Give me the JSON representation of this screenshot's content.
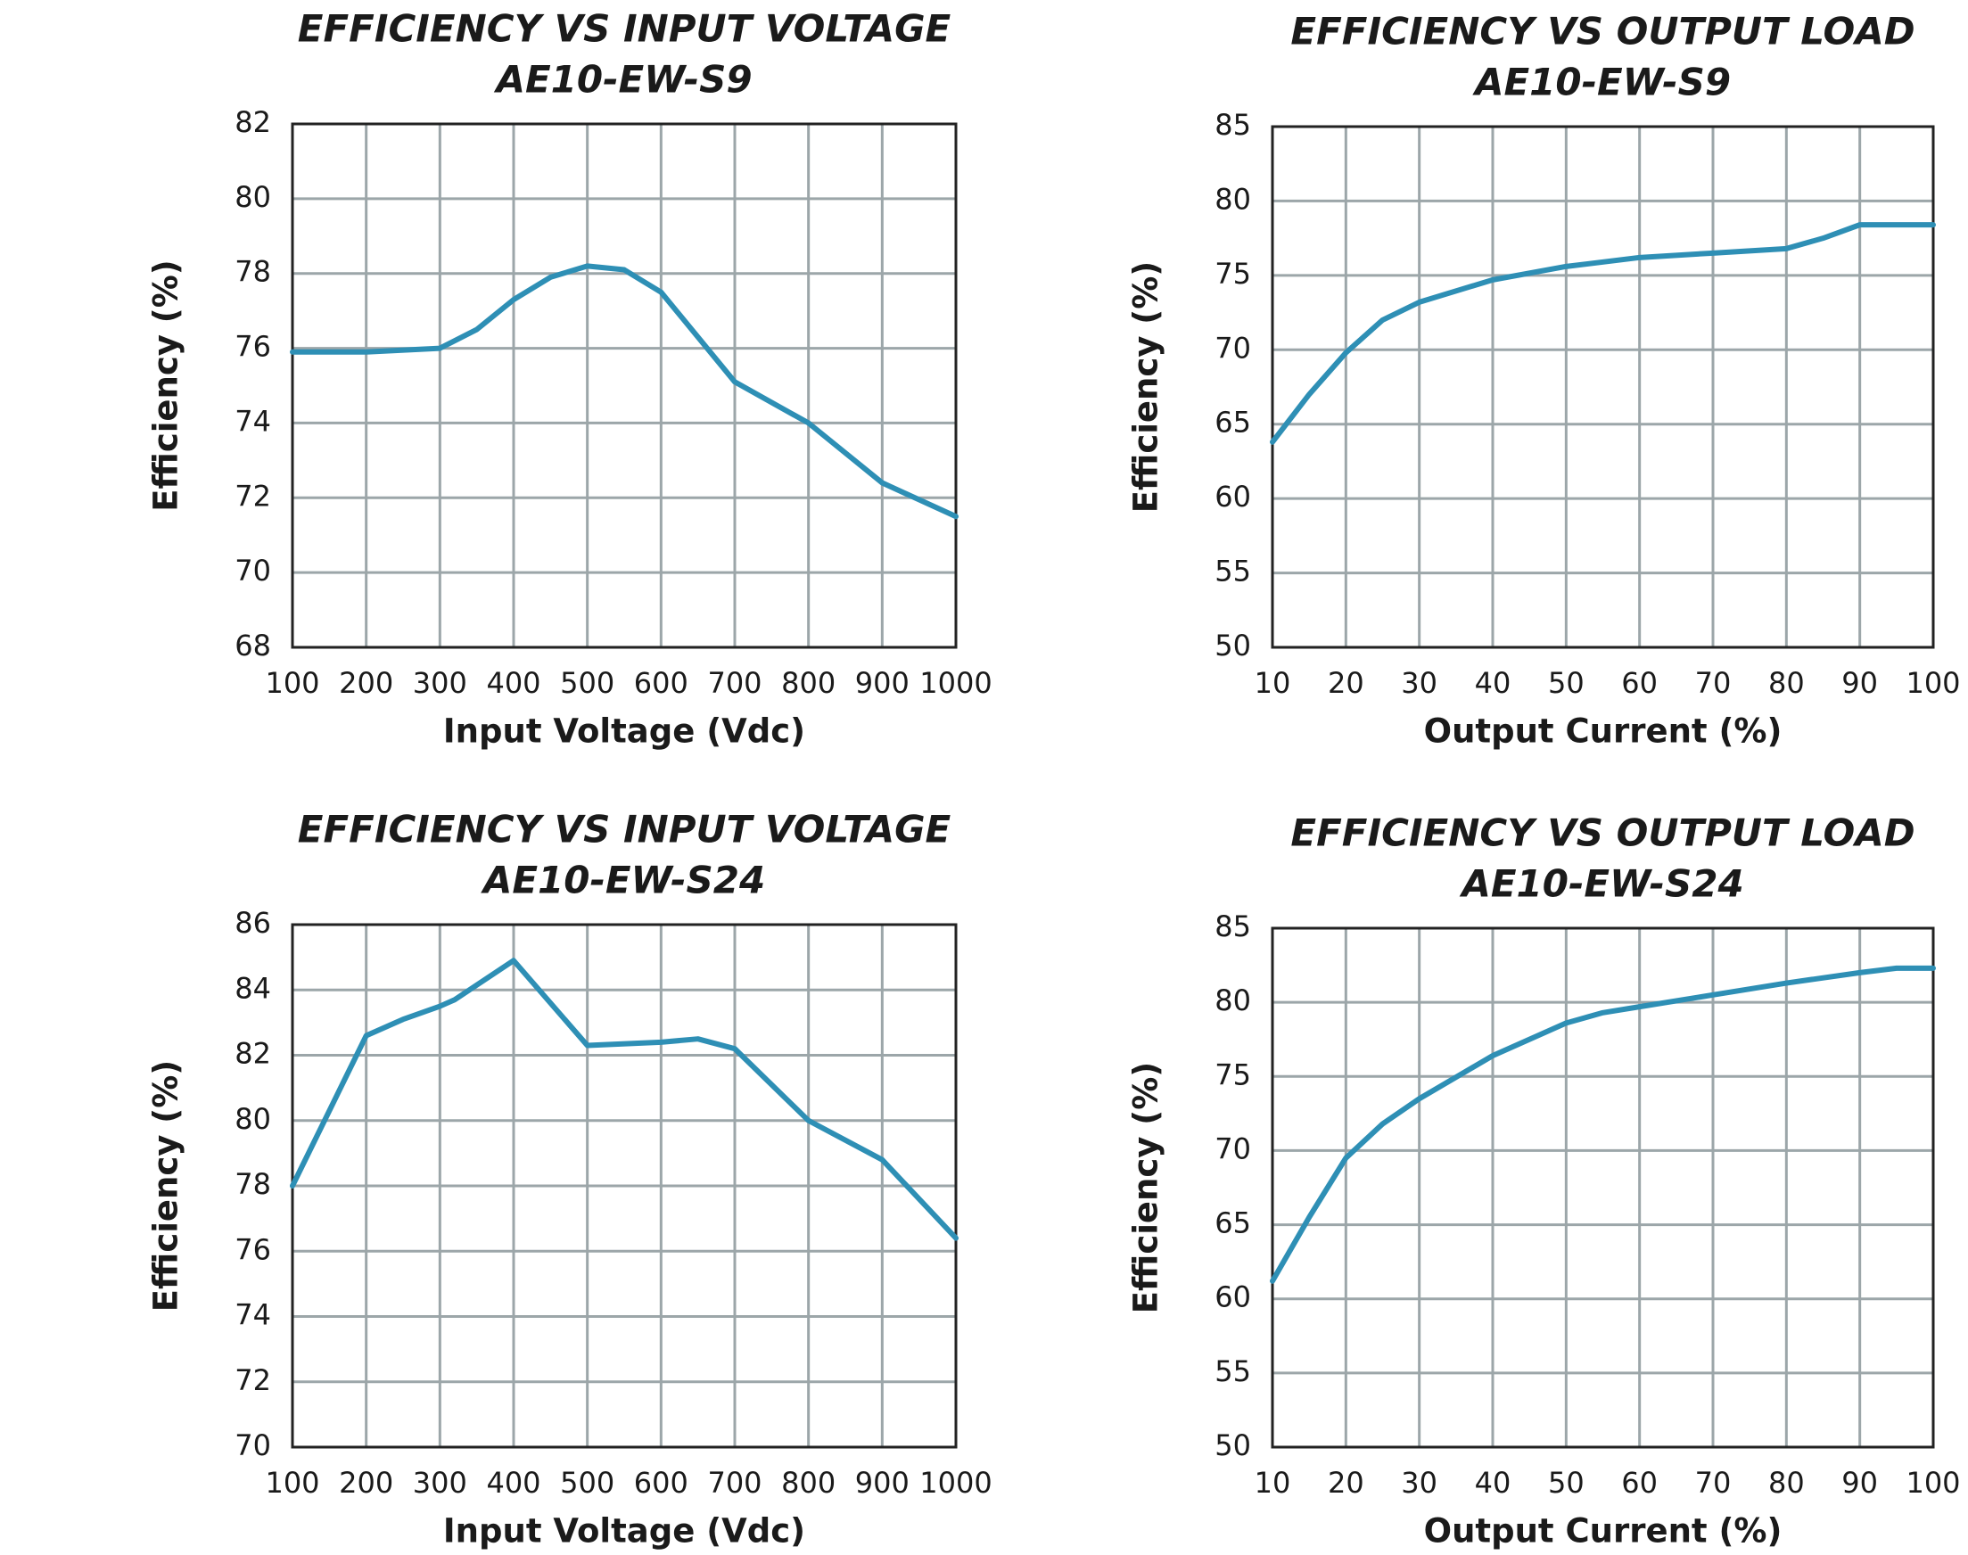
{
  "chart_data": [
    {
      "type": "line",
      "title": "EFFICIENCY VS INPUT VOLTAGE",
      "subtitle": "AE10-EW-S9",
      "x_label": "Input Voltage (Vdc)",
      "y_label": "Efficiency (%)",
      "x": [
        100,
        200,
        300,
        350,
        400,
        450,
        500,
        550,
        600,
        700,
        800,
        900,
        1000
      ],
      "values": [
        75.9,
        75.9,
        76.0,
        76.5,
        77.3,
        77.9,
        78.2,
        78.1,
        77.5,
        75.1,
        74.0,
        72.4,
        71.5
      ],
      "color": "#2e8fb5",
      "grid": true,
      "xlim": [
        100,
        1000
      ],
      "xticks": [
        100,
        200,
        300,
        400,
        500,
        600,
        700,
        800,
        900,
        1000
      ],
      "ylim": [
        68,
        82
      ],
      "yticks": [
        68,
        70,
        72,
        74,
        76,
        78,
        80,
        82
      ]
    },
    {
      "type": "line",
      "title": "EFFICIENCY VS OUTPUT LOAD",
      "subtitle": "AE10-EW-S9",
      "x_label": "Output Current (%)",
      "y_label": "Efficiency (%)",
      "x": [
        10,
        15,
        20,
        25,
        30,
        40,
        50,
        60,
        70,
        80,
        85,
        90,
        100
      ],
      "values": [
        63.8,
        67,
        69.8,
        72,
        73.2,
        74.7,
        75.6,
        76.2,
        76.5,
        76.8,
        77.5,
        78.4,
        78.4
      ],
      "color": "#2e8fb5",
      "grid": true,
      "xlim": [
        10,
        100
      ],
      "xticks": [
        10,
        20,
        30,
        40,
        50,
        60,
        70,
        80,
        90,
        100
      ],
      "ylim": [
        50,
        85
      ],
      "yticks": [
        50,
        55,
        60,
        65,
        70,
        75,
        80,
        85
      ]
    },
    {
      "type": "line",
      "title": "EFFICIENCY VS INPUT VOLTAGE",
      "subtitle": "AE10-EW-S24",
      "x_label": "Input Voltage (Vdc)",
      "y_label": "Efficiency (%)",
      "x": [
        100,
        150,
        200,
        250,
        300,
        320,
        400,
        500,
        600,
        650,
        700,
        800,
        900,
        1000
      ],
      "values": [
        78.0,
        80.3,
        82.6,
        83.1,
        83.5,
        83.7,
        84.9,
        82.3,
        82.4,
        82.5,
        82.2,
        80.0,
        78.8,
        76.4
      ],
      "color": "#2e8fb5",
      "grid": true,
      "xlim": [
        100,
        1000
      ],
      "xticks": [
        100,
        200,
        300,
        400,
        500,
        600,
        700,
        800,
        900,
        1000
      ],
      "ylim": [
        70,
        86
      ],
      "yticks": [
        70,
        72,
        74,
        76,
        78,
        80,
        82,
        84,
        86
      ]
    },
    {
      "type": "line",
      "title": "EFFICIENCY VS OUTPUT LOAD",
      "subtitle": "AE10-EW-S24",
      "x_label": "Output Current (%)",
      "y_label": "Efficiency (%)",
      "x": [
        10,
        15,
        20,
        25,
        30,
        40,
        50,
        55,
        60,
        70,
        80,
        90,
        95,
        100
      ],
      "values": [
        61.2,
        65.5,
        69.5,
        71.8,
        73.5,
        76.4,
        78.6,
        79.3,
        79.7,
        80.5,
        81.3,
        82.0,
        82.3,
        82.3
      ],
      "color": "#2e8fb5",
      "grid": true,
      "xlim": [
        10,
        100
      ],
      "xticks": [
        10,
        20,
        30,
        40,
        50,
        60,
        70,
        80,
        90,
        100
      ],
      "ylim": [
        50,
        85
      ],
      "yticks": [
        50,
        55,
        60,
        65,
        70,
        75,
        80,
        85
      ]
    }
  ]
}
